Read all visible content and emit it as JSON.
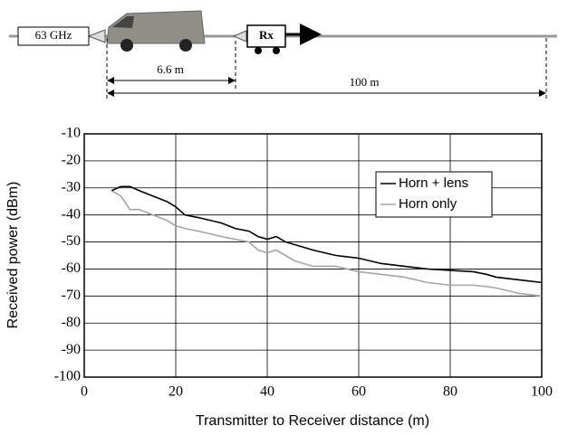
{
  "diagram": {
    "transmitter": "63 GHz",
    "receiver": "Rx",
    "near_distance": "6.6 m",
    "far_distance": "100 m"
  },
  "chart_data": {
    "type": "line",
    "xlabel": "Transmitter to Receiver distance (m)",
    "ylabel": "Received power (dBm)",
    "x": [
      6,
      8,
      10,
      12,
      15,
      18,
      20,
      22,
      25,
      30,
      33,
      36,
      38,
      40,
      42,
      44,
      46,
      50,
      55,
      60,
      65,
      70,
      75,
      80,
      85,
      88,
      90,
      95,
      100
    ],
    "series": [
      {
        "name": "Horn + lens",
        "color": "#000000",
        "values": [
          -31,
          -29.5,
          -29.5,
          -31,
          -33,
          -35,
          -37,
          -40,
          -41,
          -43,
          -45,
          -46,
          -48,
          -49,
          -48,
          -50,
          -51,
          -53,
          -55,
          -56,
          -58,
          -59,
          -60,
          -60.5,
          -61,
          -62,
          -63,
          -64,
          -65
        ]
      },
      {
        "name": "Horn only",
        "color": "#a6a6a6",
        "values": [
          -31,
          -33,
          -38,
          -38,
          -40,
          -42,
          -44,
          -45,
          -46,
          -48,
          -49,
          -50,
          -53,
          -54,
          -53,
          -55,
          -57,
          -59,
          -59,
          -61,
          -62,
          -63,
          -65,
          -66,
          -66,
          -66.5,
          -67,
          -69,
          -70
        ]
      }
    ],
    "xlim": [
      0,
      100
    ],
    "xticks": [
      0,
      20,
      40,
      60,
      80,
      100
    ],
    "ylim": [
      -100,
      -10
    ],
    "yticks": [
      -100,
      -90,
      -80,
      -70,
      -60,
      -50,
      -40,
      -30,
      -20,
      -10
    ],
    "grid": true,
    "legend": "upper right"
  }
}
